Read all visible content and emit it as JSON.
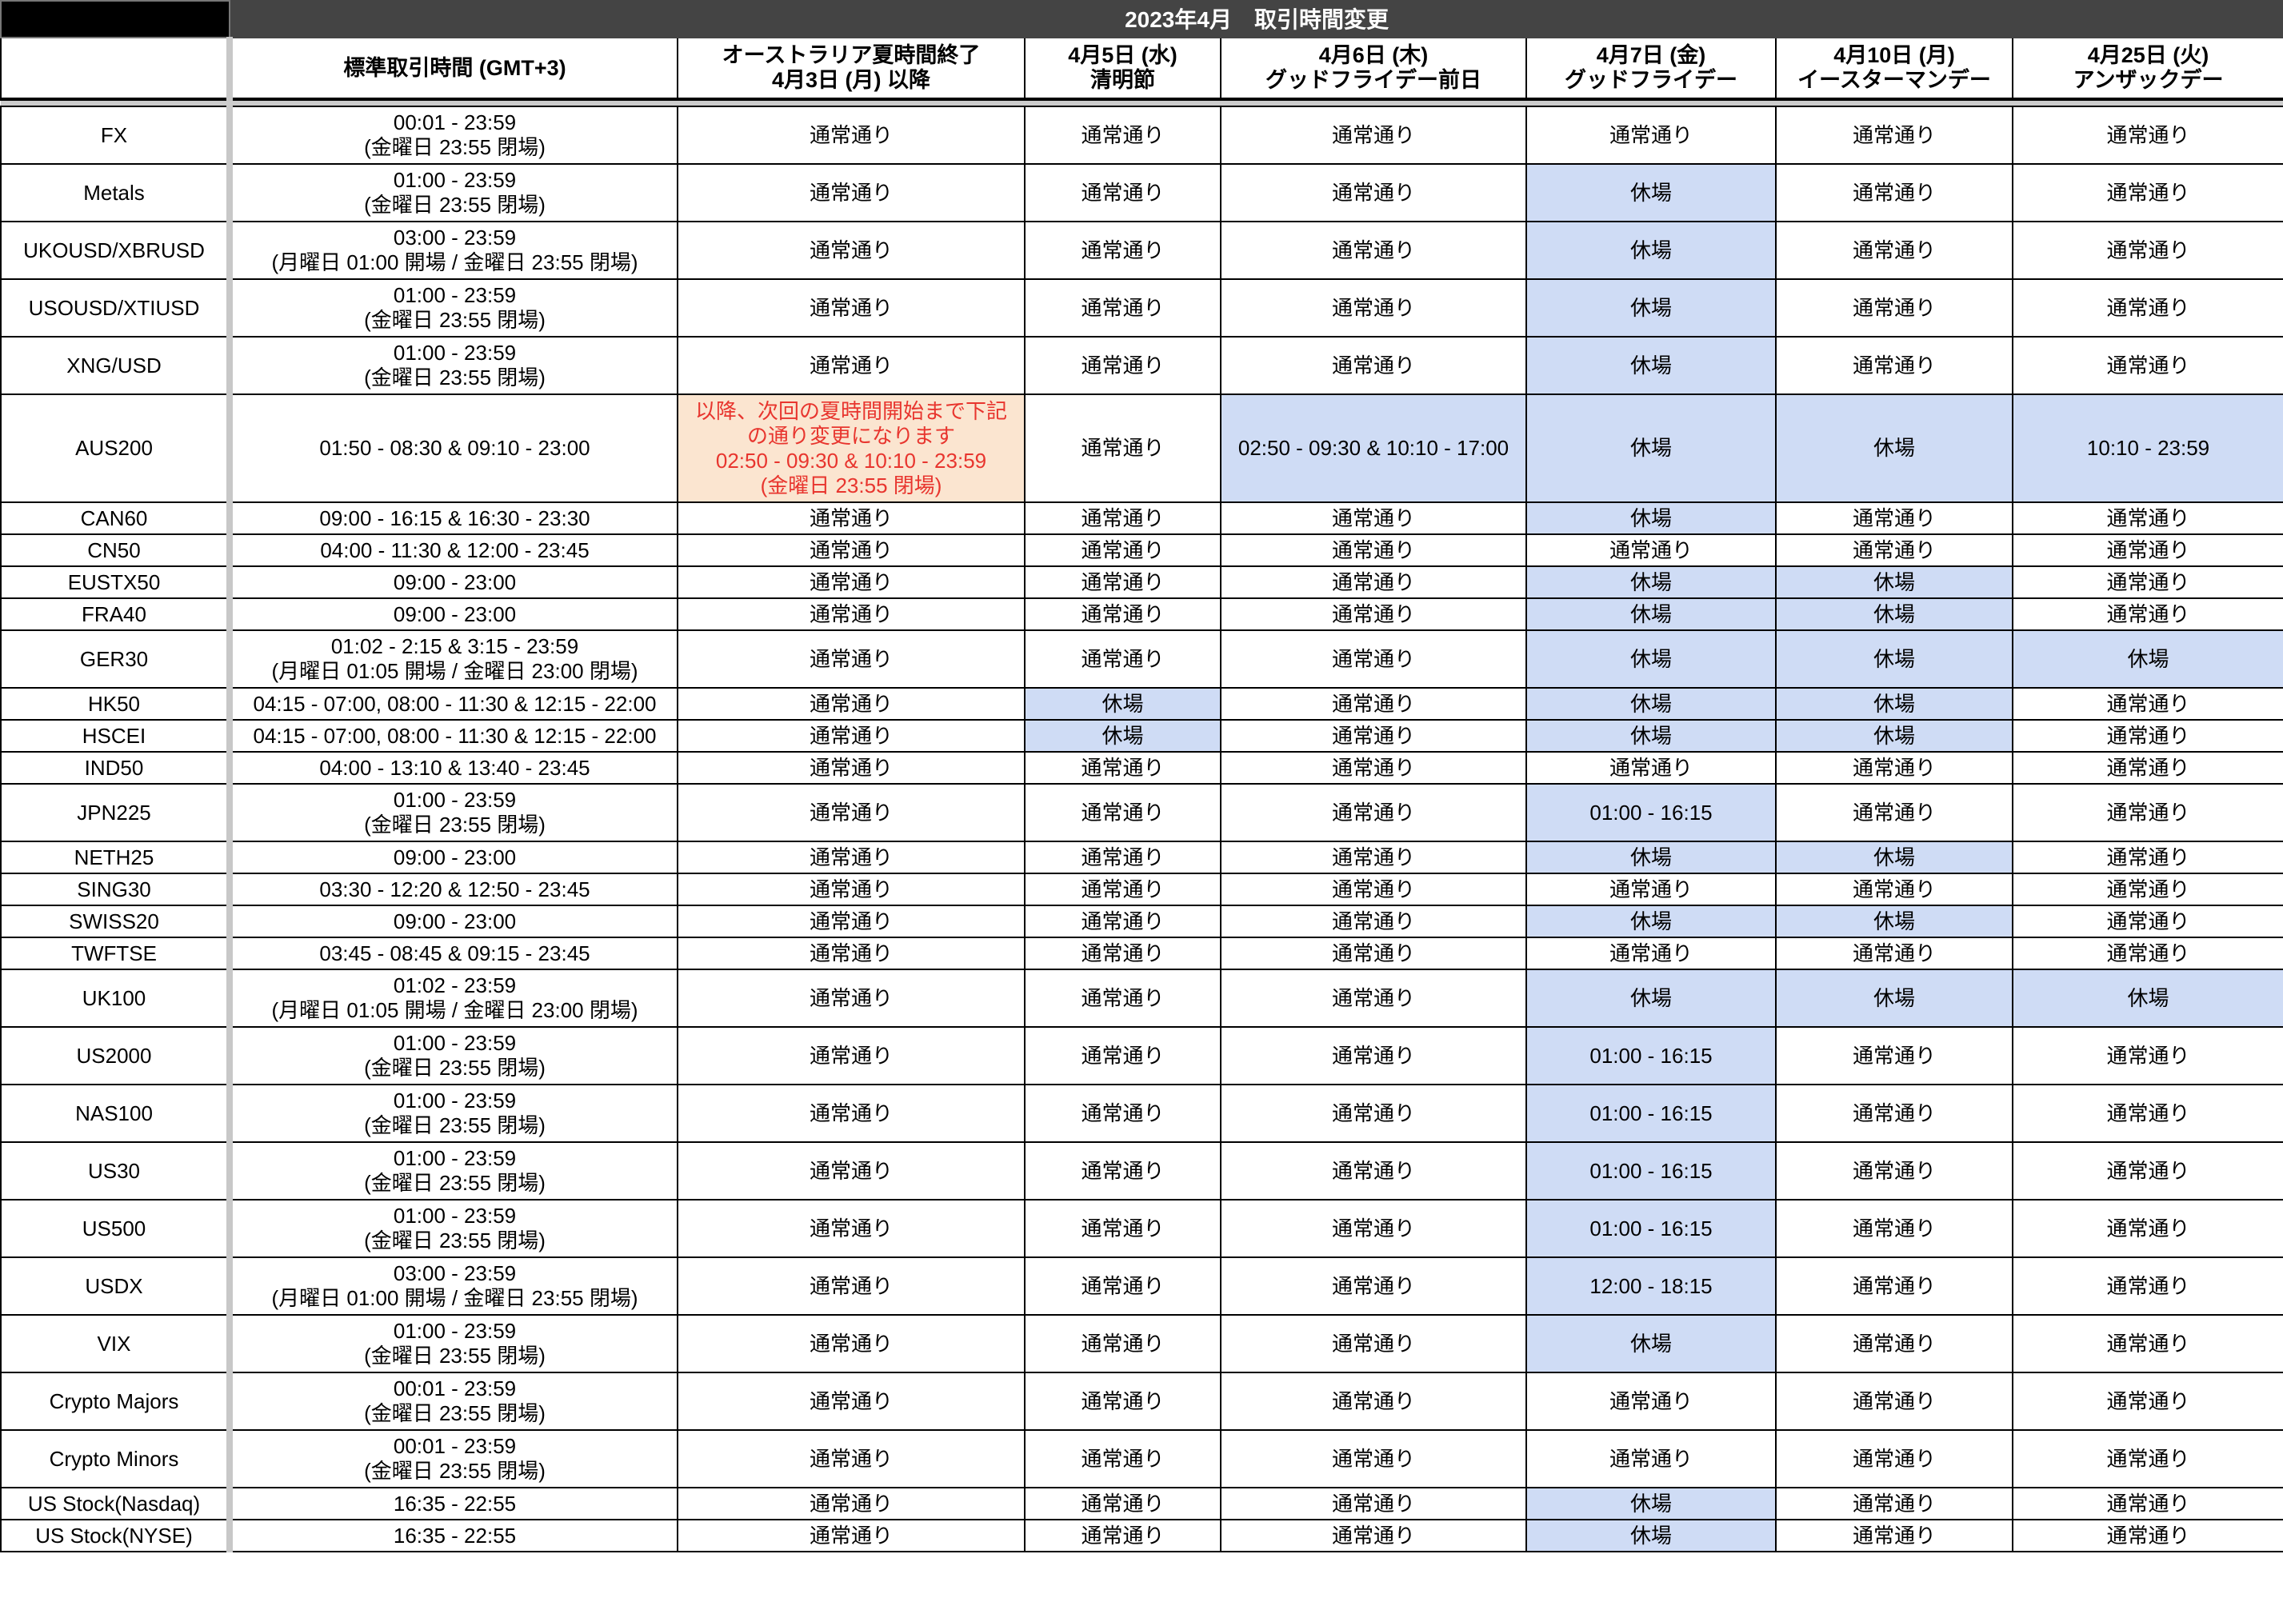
{
  "colors": {
    "closed_highlight": "#cfdcf5",
    "note_highlight": "#fbe5d0",
    "note_text": "#e8352e",
    "title_bar": "#444444"
  },
  "title": "2023年4月　取引時間変更",
  "headers": [
    "",
    "標準取引時間 (GMT+3)",
    "オーストラリア夏時間終了\n4月3日 (月) 以降",
    "4月5日 (水)\n清明節",
    "4月6日 (木)\nグッドフライデー前日",
    "4月7日 (金)\nグッドフライデー",
    "4月10日 (月)\nイースターマンデー",
    "4月25日 (火)\nアンザックデー"
  ],
  "rows": [
    {
      "name": "FX",
      "hours": "00:01 - 23:59\n(金曜日 23:55 閉場)",
      "size": "tall",
      "cells": [
        "通常通り",
        "通常通り",
        "通常通り",
        "通常通り",
        "通常通り",
        "通常通り"
      ],
      "hl": []
    },
    {
      "name": "Metals",
      "hours": "01:00 - 23:59\n(金曜日 23:55 閉場)",
      "size": "tall",
      "cells": [
        "通常通り",
        "通常通り",
        "通常通り",
        "休場",
        "通常通り",
        "通常通り"
      ],
      "hl": [
        3
      ]
    },
    {
      "name": "UKOUSD/XBRUSD",
      "hours": "03:00 - 23:59\n(月曜日 01:00 開場 / 金曜日 23:55 閉場)",
      "size": "tall",
      "cells": [
        "通常通り",
        "通常通り",
        "通常通り",
        "休場",
        "通常通り",
        "通常通り"
      ],
      "hl": [
        3
      ]
    },
    {
      "name": "USOUSD/XTIUSD",
      "hours": "01:00 - 23:59\n(金曜日 23:55 閉場)",
      "size": "tall",
      "cells": [
        "通常通り",
        "通常通り",
        "通常通り",
        "休場",
        "通常通り",
        "通常通り"
      ],
      "hl": [
        3
      ]
    },
    {
      "name": "XNG/USD",
      "hours": "01:00 - 23:59\n(金曜日 23:55 閉場)",
      "size": "tall",
      "cells": [
        "通常通り",
        "通常通り",
        "通常通り",
        "休場",
        "通常通り",
        "通常通り"
      ],
      "hl": [
        3
      ]
    },
    {
      "name": "AUS200",
      "hours": "01:50 - 08:30 & 09:10 - 23:00",
      "size": "big",
      "cells": [
        "以降、次回の夏時間開始まで下記\nの通り変更になります\n02:50 - 09:30 & 10:10 - 23:59\n(金曜日 23:55 閉場)",
        "通常通り",
        "02:50 - 09:30 & 10:10 - 17:00",
        "休場",
        "休場",
        "10:10 - 23:59"
      ],
      "hl": [
        2,
        3,
        4,
        5
      ],
      "orange": [
        0
      ]
    },
    {
      "name": "CAN60",
      "hours": "09:00 - 16:15 & 16:30 - 23:30",
      "size": "short",
      "cells": [
        "通常通り",
        "通常通り",
        "通常通り",
        "休場",
        "通常通り",
        "通常通り"
      ],
      "hl": [
        3
      ]
    },
    {
      "name": "CN50",
      "hours": "04:00 - 11:30 & 12:00 - 23:45",
      "size": "short",
      "cells": [
        "通常通り",
        "通常通り",
        "通常通り",
        "通常通り",
        "通常通り",
        "通常通り"
      ],
      "hl": []
    },
    {
      "name": "EUSTX50",
      "hours": "09:00 - 23:00",
      "size": "short",
      "cells": [
        "通常通り",
        "通常通り",
        "通常通り",
        "休場",
        "休場",
        "通常通り"
      ],
      "hl": [
        3,
        4
      ]
    },
    {
      "name": "FRA40",
      "hours": "09:00 - 23:00",
      "size": "short",
      "cells": [
        "通常通り",
        "通常通り",
        "通常通り",
        "休場",
        "休場",
        "通常通り"
      ],
      "hl": [
        3,
        4
      ]
    },
    {
      "name": "GER30",
      "hours": "01:02 - 2:15 & 3:15 - 23:59\n(月曜日 01:05 開場 / 金曜日 23:00 閉場)",
      "size": "tall",
      "cells": [
        "通常通り",
        "通常通り",
        "通常通り",
        "休場",
        "休場",
        "休場"
      ],
      "hl": [
        3,
        4,
        5
      ]
    },
    {
      "name": "HK50",
      "hours": "04:15 - 07:00, 08:00 - 11:30 & 12:15 - 22:00",
      "size": "short",
      "cells": [
        "通常通り",
        "休場",
        "通常通り",
        "休場",
        "休場",
        "通常通り"
      ],
      "hl": [
        1,
        3,
        4
      ]
    },
    {
      "name": "HSCEI",
      "hours": "04:15 - 07:00, 08:00 - 11:30 & 12:15 - 22:00",
      "size": "short",
      "cells": [
        "通常通り",
        "休場",
        "通常通り",
        "休場",
        "休場",
        "通常通り"
      ],
      "hl": [
        1,
        3,
        4
      ]
    },
    {
      "name": "IND50",
      "hours": "04:00 - 13:10 & 13:40 - 23:45",
      "size": "short",
      "cells": [
        "通常通り",
        "通常通り",
        "通常通り",
        "通常通り",
        "通常通り",
        "通常通り"
      ],
      "hl": []
    },
    {
      "name": "JPN225",
      "hours": "01:00 - 23:59\n(金曜日 23:55 閉場)",
      "size": "tall",
      "cells": [
        "通常通り",
        "通常通り",
        "通常通り",
        "01:00 - 16:15",
        "通常通り",
        "通常通り"
      ],
      "hl": [
        3
      ]
    },
    {
      "name": "NETH25",
      "hours": "09:00 - 23:00",
      "size": "short",
      "cells": [
        "通常通り",
        "通常通り",
        "通常通り",
        "休場",
        "休場",
        "通常通り"
      ],
      "hl": [
        3,
        4
      ]
    },
    {
      "name": "SING30",
      "hours": "03:30 - 12:20 & 12:50 - 23:45",
      "size": "short",
      "cells": [
        "通常通り",
        "通常通り",
        "通常通り",
        "通常通り",
        "通常通り",
        "通常通り"
      ],
      "hl": []
    },
    {
      "name": "SWISS20",
      "hours": "09:00 - 23:00",
      "size": "short",
      "cells": [
        "通常通り",
        "通常通り",
        "通常通り",
        "休場",
        "休場",
        "通常通り"
      ],
      "hl": [
        3,
        4
      ]
    },
    {
      "name": "TWFTSE",
      "hours": "03:45 - 08:45 & 09:15 - 23:45",
      "size": "short",
      "cells": [
        "通常通り",
        "通常通り",
        "通常通り",
        "通常通り",
        "通常通り",
        "通常通り"
      ],
      "hl": []
    },
    {
      "name": "UK100",
      "hours": "01:02 - 23:59\n(月曜日 01:05 開場 / 金曜日 23:00 閉場)",
      "size": "tall",
      "cells": [
        "通常通り",
        "通常通り",
        "通常通り",
        "休場",
        "休場",
        "休場"
      ],
      "hl": [
        3,
        4,
        5
      ]
    },
    {
      "name": "US2000",
      "hours": "01:00 - 23:59\n(金曜日 23:55 閉場)",
      "size": "tall",
      "cells": [
        "通常通り",
        "通常通り",
        "通常通り",
        "01:00 - 16:15",
        "通常通り",
        "通常通り"
      ],
      "hl": [
        3
      ]
    },
    {
      "name": "NAS100",
      "hours": "01:00 - 23:59\n(金曜日 23:55 閉場)",
      "size": "tall",
      "cells": [
        "通常通り",
        "通常通り",
        "通常通り",
        "01:00 - 16:15",
        "通常通り",
        "通常通り"
      ],
      "hl": [
        3
      ]
    },
    {
      "name": "US30",
      "hours": "01:00 - 23:59\n(金曜日 23:55 閉場)",
      "size": "tall",
      "cells": [
        "通常通り",
        "通常通り",
        "通常通り",
        "01:00 - 16:15",
        "通常通り",
        "通常通り"
      ],
      "hl": [
        3
      ]
    },
    {
      "name": "US500",
      "hours": "01:00 - 23:59\n(金曜日 23:55 閉場)",
      "size": "tall",
      "cells": [
        "通常通り",
        "通常通り",
        "通常通り",
        "01:00 - 16:15",
        "通常通り",
        "通常通り"
      ],
      "hl": [
        3
      ]
    },
    {
      "name": "USDX",
      "hours": "03:00 - 23:59\n(月曜日 01:00 開場 / 金曜日 23:55 閉場)",
      "size": "tall",
      "cells": [
        "通常通り",
        "通常通り",
        "通常通り",
        "12:00 - 18:15",
        "通常通り",
        "通常通り"
      ],
      "hl": [
        3
      ]
    },
    {
      "name": "VIX",
      "hours": "01:00 - 23:59\n(金曜日 23:55 閉場)",
      "size": "tall",
      "cells": [
        "通常通り",
        "通常通り",
        "通常通り",
        "休場",
        "通常通り",
        "通常通り"
      ],
      "hl": [
        3
      ]
    },
    {
      "name": "Crypto Majors",
      "hours": "00:01 - 23:59\n(金曜日 23:55 閉場)",
      "size": "tall",
      "cells": [
        "通常通り",
        "通常通り",
        "通常通り",
        "通常通り",
        "通常通り",
        "通常通り"
      ],
      "hl": []
    },
    {
      "name": "Crypto Minors",
      "hours": "00:01 - 23:59\n(金曜日 23:55 閉場)",
      "size": "tall",
      "cells": [
        "通常通り",
        "通常通り",
        "通常通り",
        "通常通り",
        "通常通り",
        "通常通り"
      ],
      "hl": []
    },
    {
      "name": "US Stock(Nasdaq)",
      "hours": "16:35 - 22:55",
      "size": "short",
      "cells": [
        "通常通り",
        "通常通り",
        "通常通り",
        "休場",
        "通常通り",
        "通常通り"
      ],
      "hl": [
        3
      ]
    },
    {
      "name": "US Stock(NYSE)",
      "hours": "16:35 - 22:55",
      "size": "short",
      "cells": [
        "通常通り",
        "通常通り",
        "通常通り",
        "休場",
        "通常通り",
        "通常通り"
      ],
      "hl": [
        3
      ]
    }
  ]
}
